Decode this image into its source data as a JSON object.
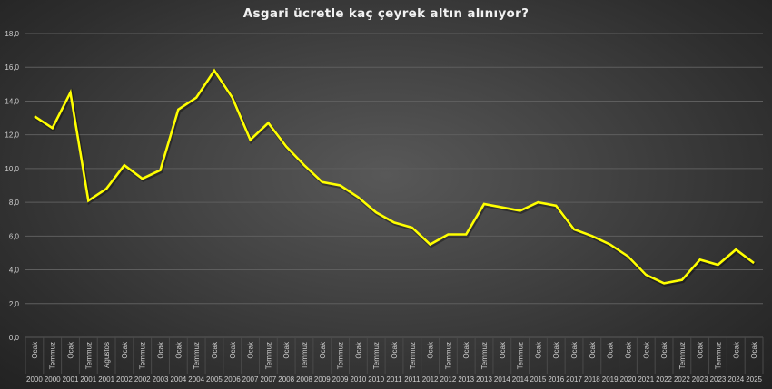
{
  "chart_data": {
    "type": "line",
    "title": "Asgari ücretle kaç çeyrek altın alınıyor?",
    "xlabel": "",
    "ylabel": "",
    "ylim": [
      0,
      18
    ],
    "yticks": [
      "0,0",
      "2,0",
      "4,0",
      "6,0",
      "8,0",
      "10,0",
      "12,0",
      "14,0",
      "16,0",
      "18,0"
    ],
    "grid": true,
    "legend": "none",
    "line_color": "#ffff00",
    "categories": [
      {
        "month": "Ocak",
        "year": "2000"
      },
      {
        "month": "Temmuz",
        "year": "2000"
      },
      {
        "month": "Ocak",
        "year": "2001"
      },
      {
        "month": "Temmuz",
        "year": "2001"
      },
      {
        "month": "Ağustos",
        "year": "2001"
      },
      {
        "month": "Ocak",
        "year": "2002"
      },
      {
        "month": "Temmuz",
        "year": "2002"
      },
      {
        "month": "Ocak",
        "year": "2003"
      },
      {
        "month": "Ocak",
        "year": "2004"
      },
      {
        "month": "Temmuz",
        "year": "2004"
      },
      {
        "month": "Ocak",
        "year": "2005"
      },
      {
        "month": "Ocak",
        "year": "2006"
      },
      {
        "month": "Ocak",
        "year": "2007"
      },
      {
        "month": "Temmuz",
        "year": "2007"
      },
      {
        "month": "Ocak",
        "year": "2008"
      },
      {
        "month": "Temmuz",
        "year": "2008"
      },
      {
        "month": "Ocak",
        "year": "2009"
      },
      {
        "month": "Temmuz",
        "year": "2009"
      },
      {
        "month": "Ocak",
        "year": "2010"
      },
      {
        "month": "Temmuz",
        "year": "2010"
      },
      {
        "month": "Ocak",
        "year": "2011"
      },
      {
        "month": "Temmuz",
        "year": "2011"
      },
      {
        "month": "Ocak",
        "year": "2012"
      },
      {
        "month": "Temmuz",
        "year": "2012"
      },
      {
        "month": "Ocak",
        "year": "2013"
      },
      {
        "month": "Temmuz",
        "year": "2013"
      },
      {
        "month": "Ocak",
        "year": "2014"
      },
      {
        "month": "Temmuz",
        "year": "2014"
      },
      {
        "month": "Ocak",
        "year": "2015"
      },
      {
        "month": "Ocak",
        "year": "2016"
      },
      {
        "month": "Ocak",
        "year": "2017"
      },
      {
        "month": "Ocak",
        "year": "2018"
      },
      {
        "month": "Ocak",
        "year": "2019"
      },
      {
        "month": "Ocak",
        "year": "2020"
      },
      {
        "month": "Ocak",
        "year": "2021"
      },
      {
        "month": "Ocak",
        "year": "2022"
      },
      {
        "month": "Temmuz",
        "year": "2022"
      },
      {
        "month": "Ocak",
        "year": "2023"
      },
      {
        "month": "Temmuz",
        "year": "2023"
      },
      {
        "month": "Ocak",
        "year": "2024"
      },
      {
        "month": "Ocak",
        "year": "2025"
      }
    ],
    "series": [
      {
        "name": "Çeyrek altın",
        "values": [
          13.1,
          12.4,
          14.5,
          8.1,
          8.8,
          10.2,
          9.4,
          9.9,
          13.5,
          14.2,
          15.8,
          14.2,
          11.7,
          12.7,
          11.3,
          10.2,
          9.2,
          9.0,
          8.3,
          7.4,
          6.8,
          6.5,
          5.5,
          6.1,
          6.1,
          7.9,
          7.7,
          7.5,
          8.0,
          7.8,
          6.4,
          6.0,
          5.5,
          4.8,
          3.7,
          3.2,
          3.4,
          4.6,
          4.3,
          5.2,
          4.4
        ]
      }
    ]
  }
}
